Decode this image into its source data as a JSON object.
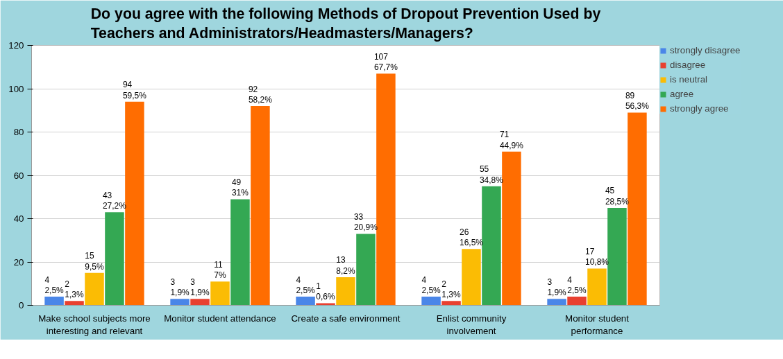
{
  "chart_data": {
    "type": "bar",
    "title": "Do you agree with the following Methods of Dropout Prevention Used by Teachers and Administrators/Headmasters/Managers?",
    "categories": [
      "Make school subjects more interesting and relevant",
      "Monitor student attendance",
      "Create a safe environment",
      "Enlist community involvement",
      "Monitor student performance"
    ],
    "series": [
      {
        "name": "strongly disagree",
        "color": "#4a86e8",
        "values": [
          4,
          3,
          4,
          4,
          3
        ],
        "value_labels": [
          "4\n2,5%",
          "3\n1,9%",
          "4\n2,5%",
          "4\n2,5%",
          "3\n1,9%"
        ]
      },
      {
        "name": "disagree",
        "color": "#e84030",
        "values": [
          2,
          3,
          1,
          2,
          4
        ],
        "value_labels": [
          "2\n1,3%",
          "3\n1,9%",
          "1\n0,6%",
          "2\n1,3%",
          "4\n2,5%"
        ]
      },
      {
        "name": "is neutral",
        "color": "#fbbc04",
        "values": [
          15,
          11,
          13,
          26,
          17
        ],
        "value_labels": [
          "15\n9,5%",
          "11\n7%",
          "13\n8,2%",
          "26\n16,5%",
          "17\n10,8%"
        ]
      },
      {
        "name": "agree",
        "color": "#34a853",
        "values": [
          43,
          49,
          33,
          55,
          45
        ],
        "value_labels": [
          "43\n27,2%",
          "49\n31%",
          "33\n20,9%",
          "55\n34,8%",
          "45\n28,5%"
        ]
      },
      {
        "name": "strongly agree",
        "color": "#ff6d01",
        "values": [
          94,
          92,
          107,
          71,
          89
        ],
        "value_labels": [
          "94\n59,5%",
          "92\n58,2%",
          "107\n67,7%",
          "71\n44,9%",
          "89\n56,3%"
        ]
      }
    ],
    "ylim": [
      0,
      120
    ],
    "yticks": [
      0,
      20,
      40,
      60,
      80,
      100,
      120
    ],
    "grid": "y",
    "legend": "right"
  }
}
